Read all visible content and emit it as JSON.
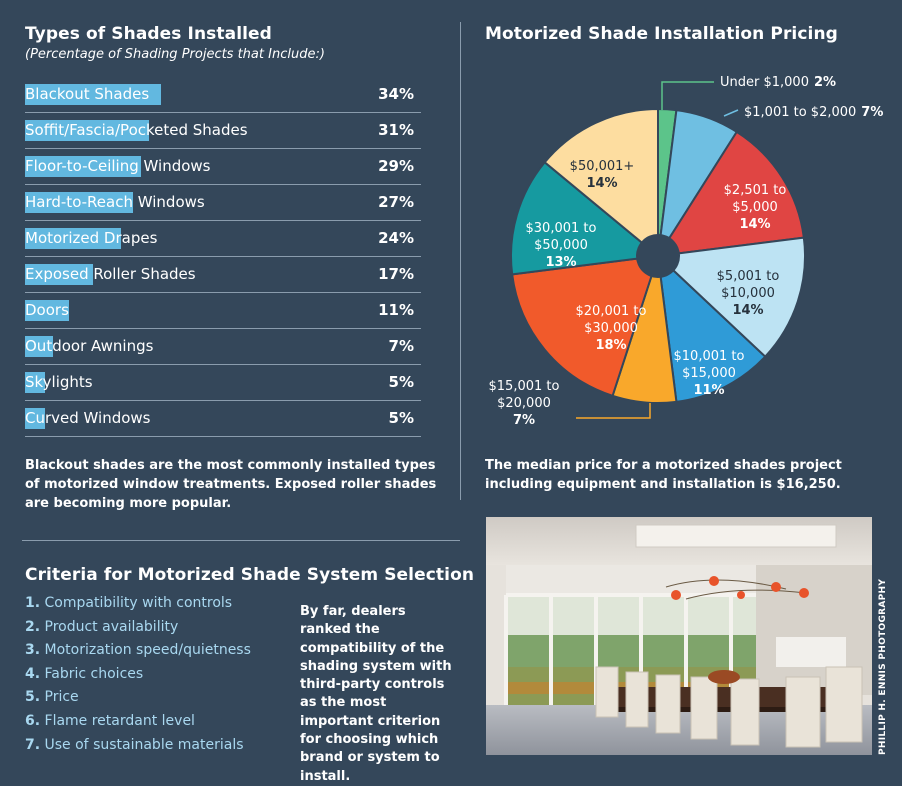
{
  "left": {
    "title": "Types of Shades Installed",
    "subtitle": "(Percentage of Shading Projects that Include:)",
    "caption": "Blackout shades are the most commonly installed types of motorized window treatments. Exposed roller shades are becoming more popular."
  },
  "right": {
    "title": "Motorized Shade Installation Pricing",
    "caption": "The median price for a motorized shades project including equipment and installation is $16,250."
  },
  "criteria": {
    "title": "Criteria for Motorized Shade System Selection",
    "items": [
      {
        "num": "1.",
        "text": "Compatibility with controls"
      },
      {
        "num": "2.",
        "text": "Product availability"
      },
      {
        "num": "3.",
        "text": "Motorization speed/quietness"
      },
      {
        "num": "4.",
        "text": "Fabric choices"
      },
      {
        "num": "5.",
        "text": "Price"
      },
      {
        "num": "6.",
        "text": "Flame retardant level"
      },
      {
        "num": "7.",
        "text": "Use of sustainable materials"
      }
    ],
    "note": "By far, dealers ranked the compatibility of the shading system with third-party controls as the most important criterion for choosing which brand or system to install."
  },
  "photo_credit": "PHILLIP H. ENNIS PHOTOGRAPHY",
  "colors": {
    "background": "#34475a",
    "bar": "#62b8e0",
    "divider": "#8a9cad",
    "criteria_text": "#a9d8f0"
  },
  "chart_data": [
    {
      "type": "bar",
      "title": "Types of Shades Installed",
      "subtitle": "(Percentage of Shading Projects that Include:)",
      "orientation": "horizontal",
      "categories": [
        "Blackout Shades",
        "Soffit/Fascia/Pocketed Shades",
        "Floor-to-Ceiling Windows",
        "Hard-to-Reach Windows",
        "Motorized Drapes",
        "Exposed Roller Shades",
        "Doors",
        "Outdoor Awnings",
        "Skylights",
        "Curved Windows"
      ],
      "values": [
        34,
        31,
        29,
        27,
        24,
        17,
        11,
        7,
        5,
        5
      ],
      "value_labels": [
        "34%",
        "31%",
        "29%",
        "27%",
        "24%",
        "17%",
        "11%",
        "7%",
        "5%",
        "5%"
      ],
      "unit": "%",
      "xlim": [
        0,
        100
      ]
    },
    {
      "type": "pie",
      "title": "Motorized Shade Installation Pricing",
      "donut": true,
      "slices": [
        {
          "label": [
            "Under $1,000"
          ],
          "value": 2,
          "pct": "2%",
          "color": "#5cc48a",
          "placement": "outside-right"
        },
        {
          "label": [
            "$1,001 to $2,000"
          ],
          "value": 7,
          "pct": "7%",
          "color": "#6fbfe2",
          "placement": "outside-right"
        },
        {
          "label": [
            "$2,501 to",
            "$5,000"
          ],
          "value": 14,
          "pct": "14%",
          "color": "#e04543",
          "placement": "inside"
        },
        {
          "label": [
            "$5,001 to",
            "$10,000"
          ],
          "value": 14,
          "pct": "14%",
          "color": "#bde3f3",
          "placement": "inside"
        },
        {
          "label": [
            "$10,001 to",
            "$15,000"
          ],
          "value": 11,
          "pct": "11%",
          "color": "#2f9bd7",
          "placement": "inside"
        },
        {
          "label": [
            "$15,001 to",
            "$20,000"
          ],
          "value": 7,
          "pct": "7%",
          "color": "#f9a82b",
          "placement": "outside-left"
        },
        {
          "label": [
            "$20,001 to",
            "$30,000"
          ],
          "value": 18,
          "pct": "18%",
          "color": "#f15a2b",
          "placement": "inside"
        },
        {
          "label": [
            "$30,001 to",
            "$50,000"
          ],
          "value": 13,
          "pct": "13%",
          "color": "#169aa0",
          "placement": "inside"
        },
        {
          "label": [
            "$50,001+"
          ],
          "value": 14,
          "pct": "14%",
          "color": "#fddda0",
          "placement": "inside"
        }
      ]
    }
  ]
}
